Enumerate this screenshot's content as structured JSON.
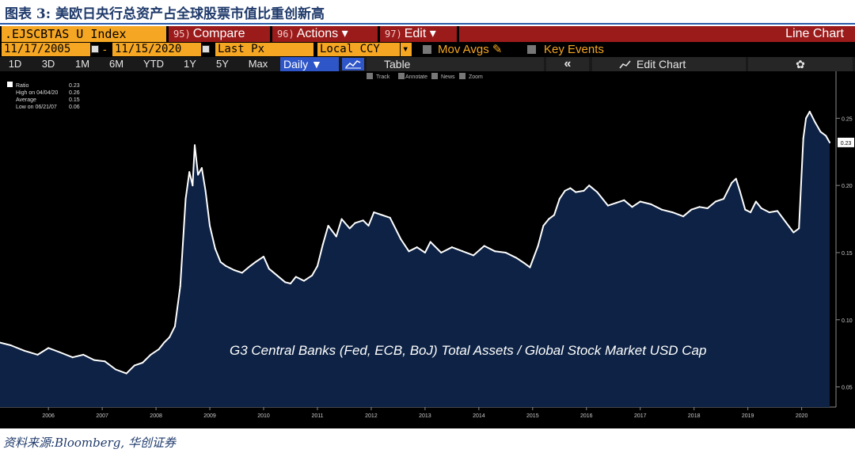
{
  "caption": "图表 3:  美欧日央行总资产占全球股票市值比重创新高",
  "toolbar": {
    "ticker": ".EJSCBTAS U Index",
    "compare_num": "95)",
    "compare": "Compare",
    "actions_num": "96)",
    "actions": "Actions ▾",
    "edit_num": "97)",
    "edit": "Edit ▾",
    "line_chart": "Line Chart"
  },
  "range": {
    "start": "11/17/2005",
    "end": "11/15/2020",
    "field": "Last Px",
    "currency": "Local CCY",
    "currency_caret": "▾",
    "mov_avgs": "Mov Avgs ✎",
    "key_events": "Key Events"
  },
  "periods": [
    "1D",
    "3D",
    "1M",
    "6M",
    "YTD",
    "1Y",
    "5Y",
    "Max"
  ],
  "frequency": "Daily ▼",
  "table": "Table",
  "collapse": "«",
  "edit_chart": "Edit Chart",
  "settings_glyph": "✿",
  "sub_tools": [
    "Track",
    "Annotate",
    "News",
    "Zoom"
  ],
  "legend": {
    "rows": [
      {
        "label": "Ratio",
        "value": "0.23"
      },
      {
        "label": "High on 04/04/20",
        "value": "0.26"
      },
      {
        "label": "Average",
        "value": "0.15"
      },
      {
        "label": "Low on 06/21/07",
        "value": "0.06"
      }
    ]
  },
  "source": "资料来源:Bloomberg,  华创证券",
  "colors": {
    "caption": "#1f3a6b",
    "toolbar_orange": "#f5a623",
    "toolbar_red": "#9b1b1b",
    "highlight_blue": "#2e56c8",
    "chart_fill": "#0d2244",
    "series_line": "#ffffff",
    "last_value_label": "#ffffff"
  },
  "chart_data": {
    "type": "area",
    "title": "",
    "annotation": "G3 Central Banks (Fed, ECB, BoJ) Total Assets / Global Stock Market USD Cap",
    "xlabel": "",
    "ylabel": "",
    "x_ticks": [
      "2006",
      "2007",
      "2008",
      "2009",
      "2010",
      "2011",
      "2012",
      "2013",
      "2014",
      "2015",
      "2016",
      "2017",
      "2018",
      "2019",
      "2020"
    ],
    "x_tick_positions": [
      2006.0,
      2007.0,
      2008.0,
      2009.0,
      2010.0,
      2011.0,
      2012.0,
      2013.0,
      2014.0,
      2015.0,
      2016.0,
      2017.0,
      2018.0,
      2019.0,
      2020.0
    ],
    "y_ticks": [
      "0.05",
      "0.10",
      "0.15",
      "0.20",
      "0.25"
    ],
    "y_tick_values": [
      0.05,
      0.1,
      0.15,
      0.2,
      0.25
    ],
    "ylim": [
      0.035,
      0.285
    ],
    "xlim": [
      2005.1,
      2020.55
    ],
    "last_value": "0.23",
    "last_value_y": 0.232,
    "grid": false,
    "legend_position": "top-left",
    "series": [
      {
        "name": "Ratio",
        "x": [
          2005.1,
          2005.3,
          2005.55,
          2005.8,
          2006.0,
          2006.2,
          2006.45,
          2006.65,
          2006.85,
          2007.05,
          2007.25,
          2007.45,
          2007.6,
          2007.75,
          2007.9,
          2008.05,
          2008.15,
          2008.25,
          2008.35,
          2008.45,
          2008.55,
          2008.62,
          2008.68,
          2008.72,
          2008.78,
          2008.85,
          2008.92,
          2009.0,
          2009.1,
          2009.2,
          2009.3,
          2009.45,
          2009.6,
          2009.75,
          2009.85,
          2010.0,
          2010.1,
          2010.25,
          2010.4,
          2010.5,
          2010.6,
          2010.75,
          2010.9,
          2011.0,
          2011.1,
          2011.2,
          2011.35,
          2011.45,
          2011.6,
          2011.7,
          2011.85,
          2011.95,
          2012.05,
          2012.2,
          2012.35,
          2012.45,
          2012.55,
          2012.7,
          2012.85,
          2013.0,
          2013.1,
          2013.3,
          2013.5,
          2013.7,
          2013.9,
          2014.1,
          2014.3,
          2014.5,
          2014.7,
          2014.85,
          2014.95,
          2015.1,
          2015.2,
          2015.3,
          2015.4,
          2015.5,
          2015.6,
          2015.7,
          2015.8,
          2015.95,
          2016.05,
          2016.2,
          2016.4,
          2016.55,
          2016.7,
          2016.85,
          2017.0,
          2017.2,
          2017.4,
          2017.6,
          2017.8,
          2017.95,
          2018.1,
          2018.25,
          2018.4,
          2018.55,
          2018.7,
          2018.78,
          2018.85,
          2018.95,
          2019.05,
          2019.15,
          2019.25,
          2019.4,
          2019.55,
          2019.7,
          2019.85,
          2019.95,
          2020.03,
          2020.08,
          2020.15,
          2020.25,
          2020.35,
          2020.45,
          2020.52
        ],
        "y": [
          0.083,
          0.081,
          0.077,
          0.074,
          0.079,
          0.076,
          0.072,
          0.074,
          0.07,
          0.069,
          0.063,
          0.06,
          0.066,
          0.068,
          0.074,
          0.078,
          0.083,
          0.087,
          0.095,
          0.125,
          0.19,
          0.21,
          0.2,
          0.23,
          0.208,
          0.213,
          0.196,
          0.17,
          0.153,
          0.143,
          0.14,
          0.137,
          0.135,
          0.14,
          0.143,
          0.147,
          0.138,
          0.133,
          0.128,
          0.127,
          0.132,
          0.129,
          0.133,
          0.14,
          0.156,
          0.17,
          0.162,
          0.175,
          0.168,
          0.172,
          0.174,
          0.17,
          0.18,
          0.178,
          0.176,
          0.168,
          0.16,
          0.151,
          0.154,
          0.15,
          0.158,
          0.15,
          0.154,
          0.151,
          0.148,
          0.155,
          0.151,
          0.15,
          0.146,
          0.142,
          0.139,
          0.155,
          0.17,
          0.175,
          0.178,
          0.19,
          0.196,
          0.198,
          0.195,
          0.196,
          0.2,
          0.195,
          0.185,
          0.187,
          0.189,
          0.184,
          0.188,
          0.186,
          0.182,
          0.18,
          0.177,
          0.182,
          0.184,
          0.183,
          0.188,
          0.19,
          0.202,
          0.205,
          0.196,
          0.182,
          0.18,
          0.188,
          0.183,
          0.18,
          0.181,
          0.173,
          0.165,
          0.168,
          0.235,
          0.25,
          0.255,
          0.247,
          0.24,
          0.237,
          0.232
        ]
      }
    ]
  }
}
